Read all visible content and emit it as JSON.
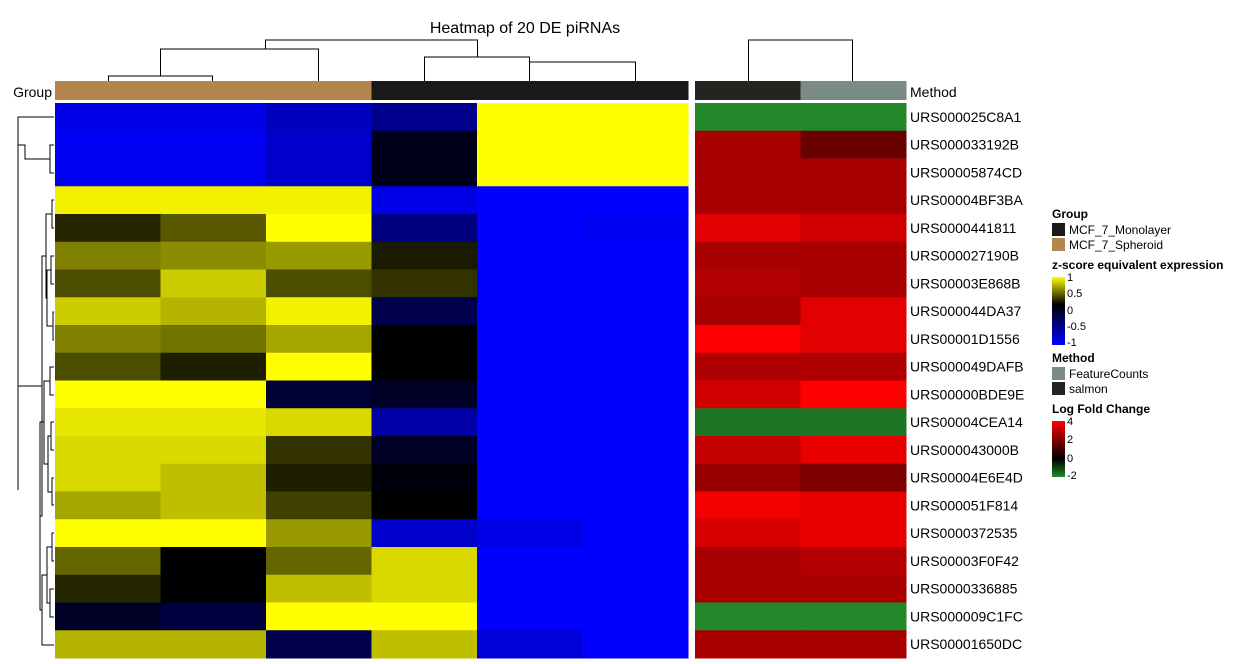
{
  "chart_data": {
    "type": "heatmap",
    "title": "Heatmap of 20 DE piRNAs",
    "group_label": "Group",
    "method_label": "Method",
    "rows": [
      "URS000025C8A1",
      "URS000033192B",
      "URS00005874CD",
      "URS00004BF3BA",
      "URS0000441811",
      "URS000027190B",
      "URS00003E868B",
      "URS000044DA37",
      "URS00001D1556",
      "URS000049DAFB",
      "URS00000BDE9E",
      "URS00004CEA14",
      "URS000043000B",
      "URS00004E6E4D",
      "URS000051F814",
      "URS0000372535",
      "URS00003F0F42",
      "URS0000336885",
      "URS000009C1FC",
      "URS00001650DC"
    ],
    "sample_groups": [
      "MCF_7_Spheroid",
      "MCF_7_Spheroid",
      "MCF_7_Spheroid",
      "MCF_7_Monolayer",
      "MCF_7_Monolayer",
      "MCF_7_Monolayer"
    ],
    "zscore": [
      [
        -0.9,
        -0.9,
        -0.75,
        -0.55,
        1,
        1
      ],
      [
        -0.95,
        -0.95,
        -0.8,
        -0.1,
        1,
        1
      ],
      [
        -0.95,
        -0.95,
        -0.8,
        -0.1,
        1,
        1
      ],
      [
        0.95,
        0.95,
        0.95,
        -0.9,
        -1,
        -1
      ],
      [
        0.15,
        0.35,
        1,
        -0.5,
        -1,
        -0.95
      ],
      [
        0.5,
        0.55,
        0.6,
        0.1,
        -1,
        -1
      ],
      [
        0.3,
        0.8,
        0.3,
        0.2,
        -1,
        -1
      ],
      [
        0.8,
        0.7,
        0.95,
        -0.3,
        -1,
        -1
      ],
      [
        0.5,
        0.45,
        0.65,
        0.0,
        -1,
        -1
      ],
      [
        0.3,
        0.12,
        1,
        0.0,
        -1,
        -1
      ],
      [
        1,
        1,
        -0.2,
        -0.15,
        -1,
        -1
      ],
      [
        0.9,
        0.9,
        0.85,
        -0.65,
        -1,
        -1
      ],
      [
        0.85,
        0.85,
        0.2,
        -0.15,
        -1,
        -1
      ],
      [
        0.85,
        0.75,
        0.12,
        -0.05,
        -1,
        -1
      ],
      [
        0.65,
        0.75,
        0.25,
        0.0,
        -1,
        -1
      ],
      [
        1,
        1,
        0.6,
        -0.8,
        -0.9,
        -1
      ],
      [
        0.4,
        0.0,
        0.4,
        0.85,
        -1,
        -1
      ],
      [
        0.15,
        0.0,
        0.75,
        0.85,
        -1,
        -1
      ],
      [
        -0.15,
        -0.25,
        1,
        1,
        -1,
        -1
      ],
      [
        0.7,
        0.7,
        -0.3,
        0.75,
        -0.85,
        -1
      ]
    ],
    "methods": [
      "salmon",
      "FeatureCounts"
    ],
    "log_fold_change": [
      [
        -2,
        -2
      ],
      [
        2.5,
        1.5
      ],
      [
        2.5,
        2.5
      ],
      [
        2.5,
        2.5
      ],
      [
        3.5,
        3.2
      ],
      [
        2.5,
        2.5
      ],
      [
        2.7,
        2.5
      ],
      [
        2.5,
        3.5
      ],
      [
        4,
        3.5
      ],
      [
        2.6,
        2.6
      ],
      [
        3.2,
        4
      ],
      [
        -1.7,
        -1.7
      ],
      [
        3,
        3.6
      ],
      [
        2.2,
        1.8
      ],
      [
        3.8,
        3.6
      ],
      [
        3.3,
        3.6
      ],
      [
        2.5,
        2.7
      ],
      [
        2.5,
        2.5
      ],
      [
        -2,
        -2
      ],
      [
        2.5,
        2.5
      ]
    ],
    "legend": {
      "group": {
        "title": "Group",
        "items": [
          {
            "label": "MCF_7_Monolayer",
            "color": "#1a1818"
          },
          {
            "label": "MCF_7_Spheroid",
            "color": "#b5854e"
          }
        ]
      },
      "zscore": {
        "title": "z-score equivalent expression",
        "ticks": [
          "1",
          "0.5",
          "0",
          "-0.5",
          "-1"
        ],
        "ramp": [
          "#0000ff",
          "#000000",
          "#ffff00"
        ]
      },
      "method": {
        "title": "Method",
        "items": [
          {
            "label": "FeatureCounts",
            "color": "#7a8a84"
          },
          {
            "label": "salmon",
            "color": "#262421"
          }
        ]
      },
      "lfc": {
        "title": "Log Fold Change",
        "ticks": [
          "4",
          "2",
          "0",
          "-2"
        ],
        "ramp": [
          "#22882a",
          "#000000",
          "#ff0000"
        ]
      }
    }
  }
}
